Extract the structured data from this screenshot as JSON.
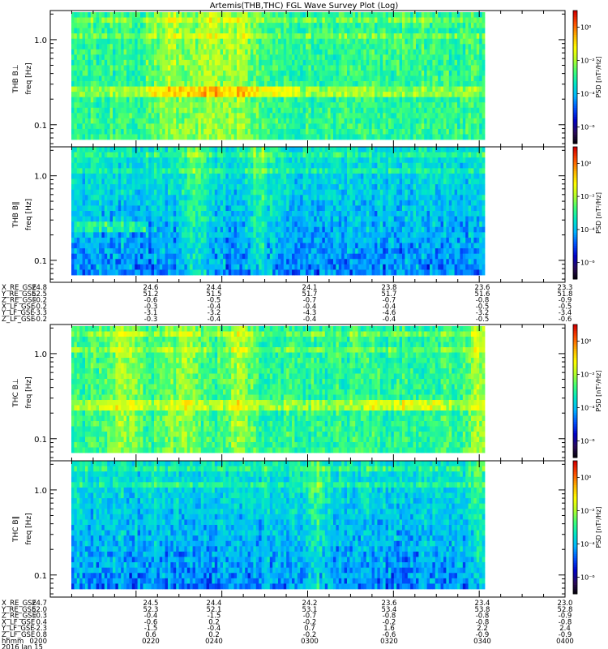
{
  "title": "Artemis(THB,THC) FGL Wave Survey Plot (Log)",
  "panel_labels": {
    "thb_perp": [
      "THB B⊥",
      "freq [Hz]"
    ],
    "thb_par": [
      "THB B∥",
      "freq [Hz]"
    ],
    "thc_perp": [
      "THC B⊥",
      "freq [Hz]"
    ],
    "thc_par": [
      "THC B∥",
      "freq [Hz]"
    ]
  },
  "y_ticks": [
    "1.0",
    "0.1"
  ],
  "colorbar": {
    "label": "PSD [nT²/Hz]",
    "ticks": [
      "10⁰",
      "10⁻²",
      "10⁻⁴",
      "10⁻⁶"
    ],
    "colors": [
      "#000000",
      "#2a0a5a",
      "#0000c8",
      "#0050ff",
      "#00b4ff",
      "#00e6c8",
      "#3cff78",
      "#b4ff28",
      "#ffff00",
      "#ffb400",
      "#ff5000",
      "#d20000"
    ]
  },
  "ephem_thb": {
    "labels": [
      "X_RE_GSE",
      "Y_RE_GSE",
      "Z_RE_GSE",
      "X_LF_GSE",
      "Y_LF_GSE",
      "Z_LF_GSE"
    ],
    "first_values": [
      "24.8",
      "52.5",
      "-0.2",
      "-0.2",
      "-3.3",
      "-0.2"
    ],
    "columns": [
      [
        "24.6",
        "51.2",
        "-0.6",
        "-0.3",
        "-3.1",
        "-0.3"
      ],
      [
        "24.4",
        "51.5",
        "-0.5",
        "-0.4",
        "-3.2",
        "-0.4"
      ],
      [
        "24.1",
        "51.7",
        "-0.7",
        "-0.4",
        "-4.3",
        "-0.4"
      ],
      [
        "23.8",
        "51.7",
        "-0.7",
        "-0.4",
        "-4.6",
        "-0.4"
      ],
      [
        "23.6",
        "51.6",
        "-0.8",
        "-0.5",
        "-3.2",
        "-0.5"
      ],
      [
        "23.3",
        "51.8",
        "-0.9",
        "-0.5",
        "-3.4",
        "-0.6"
      ]
    ]
  },
  "ephem_thc": {
    "labels": [
      "X_RE_GSE",
      "Y_RE_GSE",
      "Z_RE_GSE",
      "X_LF_GSE",
      "Y_LF_GSE",
      "Z_LF_GSE",
      "hhmm",
      "2016 Jan 15"
    ],
    "first_values": [
      "24.7",
      "52.0",
      "-0.3",
      "0.4",
      "-2.3",
      "0.8",
      "0200",
      ""
    ],
    "columns": [
      [
        "24.5",
        "52.3",
        "-0.4",
        "-0.6",
        "-1.5",
        "0.6",
        "0220"
      ],
      [
        "24.4",
        "52.1",
        "-1.5",
        "0.2",
        "-0.4",
        "0.2",
        "0240"
      ],
      [
        "24.2",
        "53.1",
        "-0.7",
        "-0.2",
        "0.7",
        "-0.2",
        "0300"
      ],
      [
        "23.6",
        "53.4",
        "-0.8",
        "-0.2",
        "1.6",
        "-0.6",
        "0320"
      ],
      [
        "23.4",
        "53.8",
        "-0.8",
        "-0.8",
        "2.2",
        "-0.9",
        "0340"
      ],
      [
        "23.0",
        "52.8",
        "-0.9",
        "-0.8",
        "2.4",
        "-0.9",
        "0400"
      ]
    ]
  },
  "chart_data": {
    "type": "heatmap",
    "title": "Artemis(THB,THC) FGL Wave Survey Plot (Log)",
    "xlabel": "hhmm (2016 Jan 15)",
    "x_ticks": [
      "0200",
      "0220",
      "0240",
      "0300",
      "0320",
      "0340",
      "0400"
    ],
    "ylabel": "freq [Hz]",
    "y_scale": "log",
    "ylim": [
      0.055,
      2.2
    ],
    "z_label": "PSD [nT²/Hz]",
    "z_scale": "log",
    "zlim": [
      1e-07,
      10
    ],
    "panels": [
      {
        "name": "THB B⊥",
        "dominant_level": "10^-4 to 10^-2",
        "features": [
          "enhanced band near 0.25 Hz (10^-2)",
          "bursts near 0228-0250"
        ]
      },
      {
        "name": "THB B∥",
        "dominant_level": "10^-5 to 10^-3",
        "features": [
          "weaker power at low frequency"
        ]
      },
      {
        "name": "THC B⊥",
        "dominant_level": "10^-4 to 10^-2",
        "features": [
          "broadband bursts near 0210-0250",
          "band near 0.25 Hz around 0320-0340"
        ]
      },
      {
        "name": "THC B∥",
        "dominant_level": "10^-5 to 10^-3",
        "features": [
          "lower power below 0.1 Hz"
        ]
      }
    ]
  }
}
